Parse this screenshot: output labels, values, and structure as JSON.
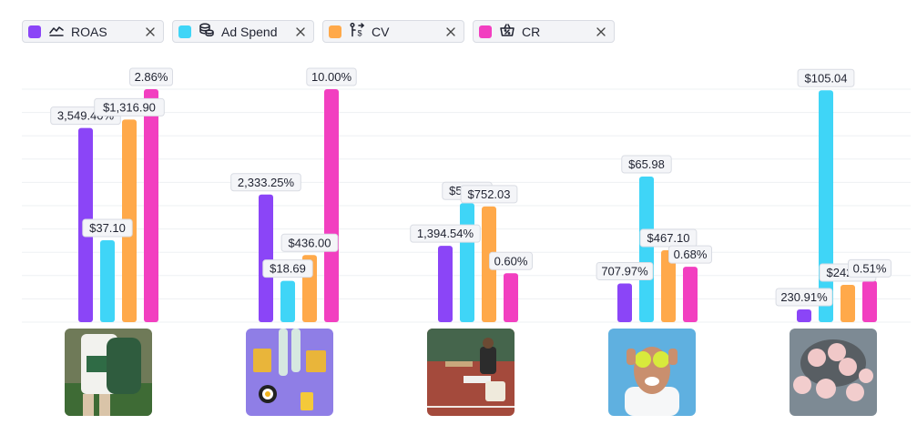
{
  "legend": [
    {
      "label": "ROAS",
      "color": "#8b45f7",
      "icon": "line-chart-icon"
    },
    {
      "label": "Ad Spend",
      "color": "#3fd5f7",
      "icon": "coins-icon"
    },
    {
      "label": "CV",
      "color": "#ffa94a",
      "icon": "conversion-flow-icon"
    },
    {
      "label": "CR",
      "color": "#f23fc0",
      "icon": "percent-basket-icon"
    }
  ],
  "chart_data": {
    "type": "bar",
    "categories": [
      "",
      "",
      "",
      "",
      ""
    ],
    "grid": true,
    "legend_position": "top-left",
    "series": [
      {
        "name": "ROAS",
        "color": "#8b45f7",
        "values": [
          3549.4,
          2333.25,
          1394.54,
          707.97,
          230.91
        ],
        "labels": [
          "3,549.40%",
          "2,333.25%",
          "1,394.54%",
          "707.97%",
          "230.91%"
        ]
      },
      {
        "name": "Ad Spend",
        "color": "#3fd5f7",
        "values": [
          37.1,
          18.69,
          53.93,
          65.98,
          105.04
        ],
        "labels": [
          "$37.10",
          "$18.69",
          "$53.93",
          "$65.98",
          "$105.04"
        ]
      },
      {
        "name": "CV",
        "color": "#ffa94a",
        "values": [
          1316.9,
          436.0,
          752.03,
          467.1,
          242.55
        ],
        "labels": [
          "$1,316.90",
          "$436.00",
          "$752.03",
          "$467.10",
          "$242.55"
        ]
      },
      {
        "name": "CR",
        "color": "#f23fc0",
        "values": [
          2.86,
          0.0,
          0.6,
          0.68,
          0.51
        ],
        "labels": [
          "2.86%",
          "",
          "0.60%",
          "0.68%",
          "0.51%"
        ]
      }
    ],
    "extra_value_label": "10.00%",
    "thumbnails": [
      "sweatshirt-photo",
      "socks-photo",
      "tennis-court-photo",
      "tennis-ball-eyes-photo",
      "tennis-ball-bag-photo"
    ]
  }
}
